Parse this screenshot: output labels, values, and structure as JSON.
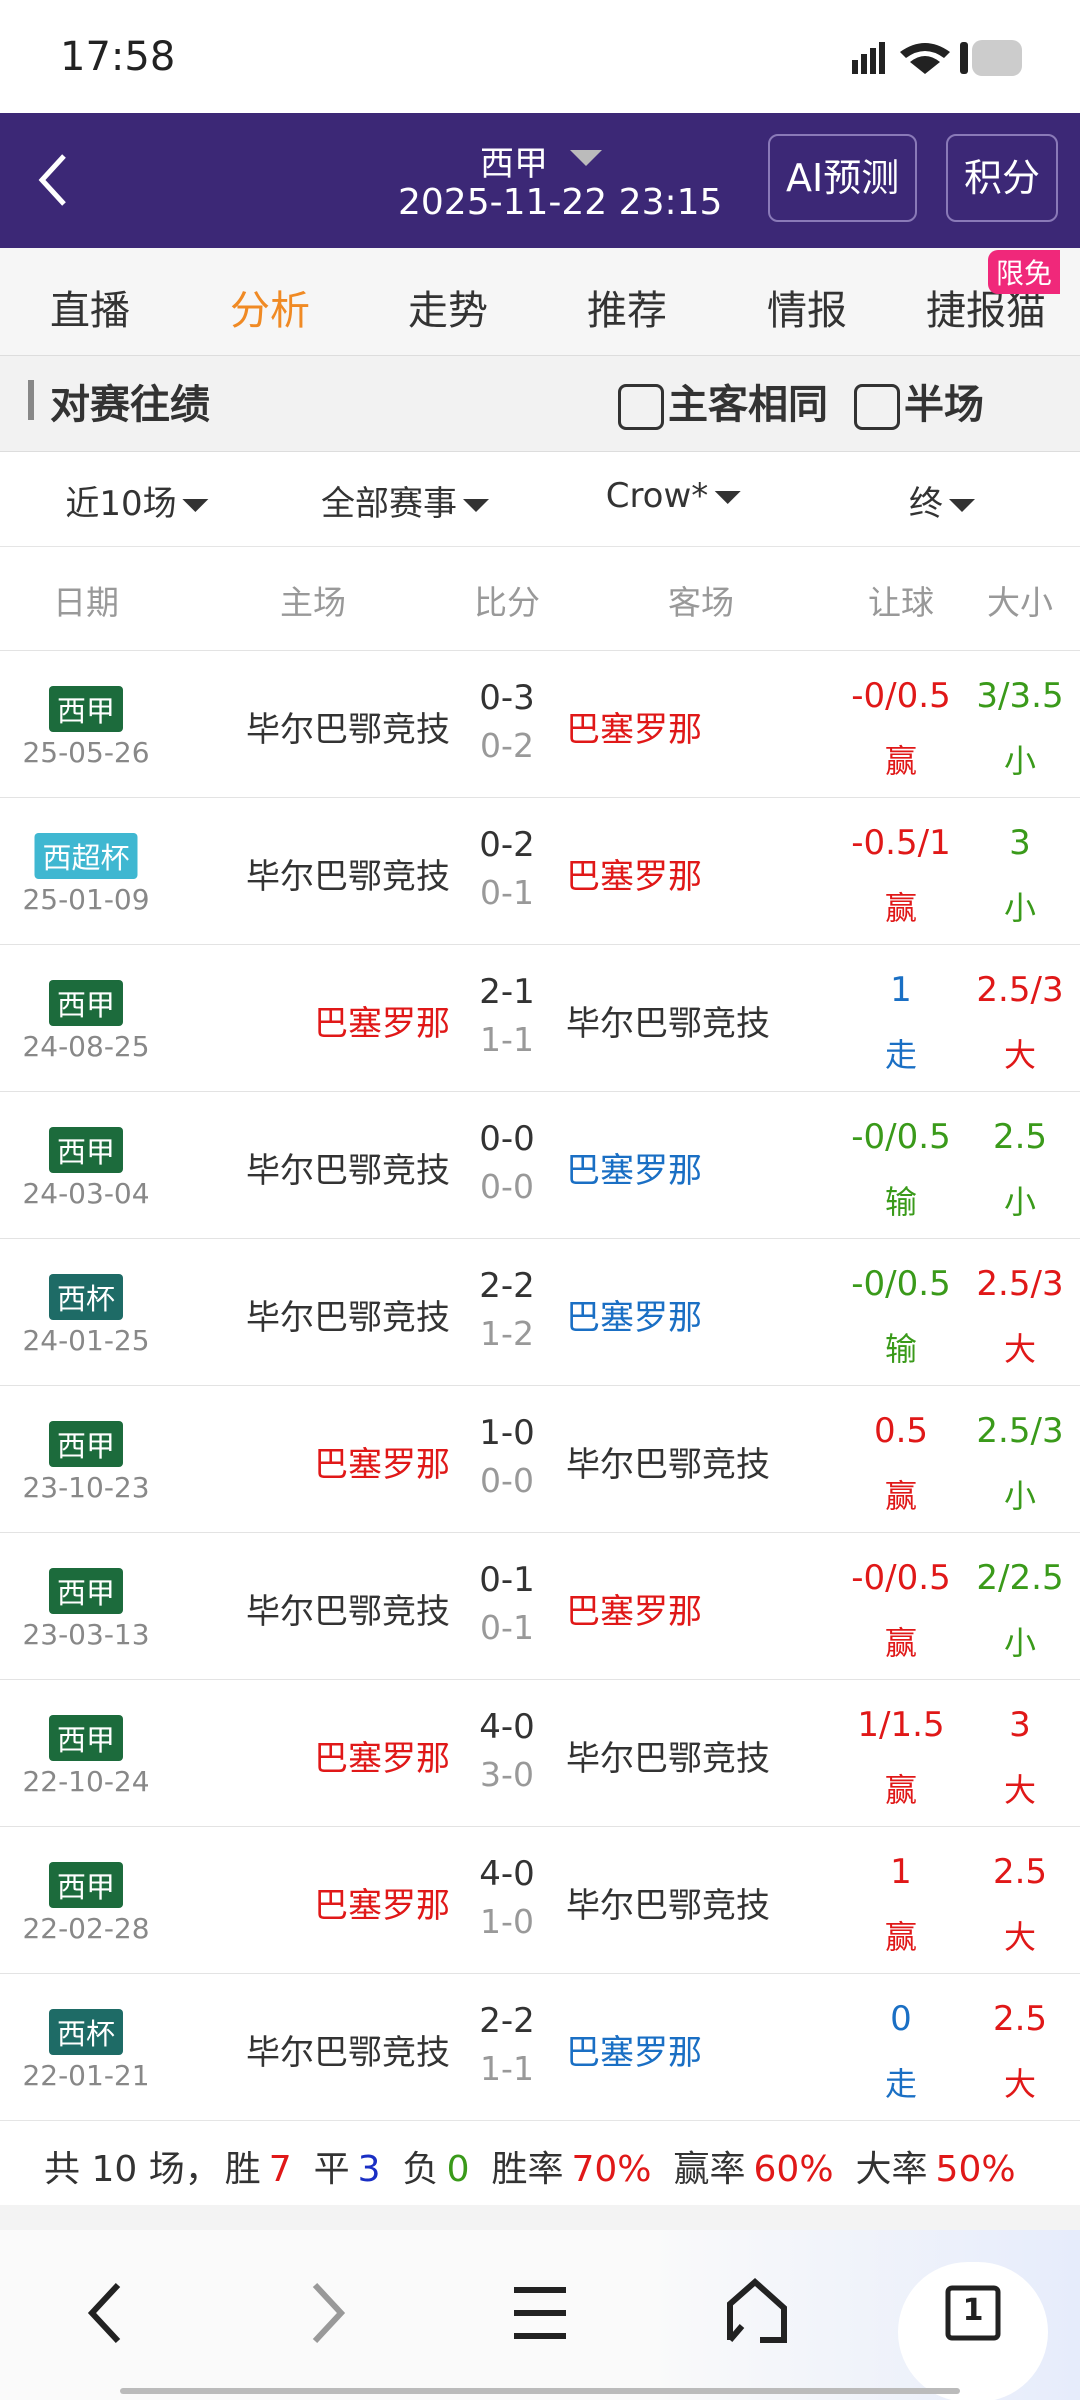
{
  "status": {
    "time": "17:58"
  },
  "header": {
    "league": "西甲",
    "datetime": "2025-11-22 23:15",
    "buttons": [
      "AI预测",
      "积分"
    ]
  },
  "tabs": {
    "items": [
      "直播",
      "分析",
      "走势",
      "推荐",
      "情报",
      "捷报猫"
    ],
    "active": 1,
    "badge": "限免"
  },
  "section": {
    "title": "对赛往绩",
    "checkboxes": [
      "主客相同",
      "半场"
    ]
  },
  "filters": [
    "近10场",
    "全部赛事",
    "Crow*",
    "终"
  ],
  "table": {
    "columns": [
      "日期",
      "主场",
      "比分",
      "客场",
      "让球",
      "大小"
    ],
    "rows": [
      {
        "league": "西甲",
        "league_color": "#1c6b3c",
        "date": "25-05-26",
        "home": "毕尔巴鄂竞技",
        "home_color": "#333333",
        "score": "0-3",
        "half": "0-2",
        "away": "巴塞罗那",
        "away_color": "#e01818",
        "handicap": "-0/0.5",
        "handicap_result": "赢",
        "handicap_color": "#e01818",
        "total": "3/3.5",
        "total_result": "小",
        "total_color": "#3a9a1a"
      },
      {
        "league": "西超杯",
        "league_color": "#3fb7d1",
        "date": "25-01-09",
        "home": "毕尔巴鄂竞技",
        "home_color": "#333333",
        "score": "0-2",
        "half": "0-1",
        "away": "巴塞罗那",
        "away_color": "#e01818",
        "handicap": "-0.5/1",
        "handicap_result": "赢",
        "handicap_color": "#e01818",
        "total": "3",
        "total_result": "小",
        "total_color": "#3a9a1a"
      },
      {
        "league": "西甲",
        "league_color": "#1c6b3c",
        "date": "24-08-25",
        "home": "巴塞罗那",
        "home_color": "#e01818",
        "score": "2-1",
        "half": "1-1",
        "away": "毕尔巴鄂竞技",
        "away_color": "#333333",
        "handicap": "1",
        "handicap_result": "走",
        "handicap_color": "#1a6fc4",
        "total": "2.5/3",
        "total_result": "大",
        "total_color": "#e01818"
      },
      {
        "league": "西甲",
        "league_color": "#1c6b3c",
        "date": "24-03-04",
        "home": "毕尔巴鄂竞技",
        "home_color": "#333333",
        "score": "0-0",
        "half": "0-0",
        "away": "巴塞罗那",
        "away_color": "#1a6fc4",
        "handicap": "-0/0.5",
        "handicap_result": "输",
        "handicap_color": "#3a9a1a",
        "total": "2.5",
        "total_result": "小",
        "total_color": "#3a9a1a"
      },
      {
        "league": "西杯",
        "league_color": "#1e6b66",
        "date": "24-01-25",
        "home": "毕尔巴鄂竞技",
        "home_color": "#333333",
        "score": "2-2",
        "half": "1-2",
        "away": "巴塞罗那",
        "away_color": "#1a6fc4",
        "handicap": "-0/0.5",
        "handicap_result": "输",
        "handicap_color": "#3a9a1a",
        "total": "2.5/3",
        "total_result": "大",
        "total_color": "#e01818"
      },
      {
        "league": "西甲",
        "league_color": "#1c6b3c",
        "date": "23-10-23",
        "home": "巴塞罗那",
        "home_color": "#e01818",
        "score": "1-0",
        "half": "0-0",
        "away": "毕尔巴鄂竞技",
        "away_color": "#333333",
        "handicap": "0.5",
        "handicap_result": "赢",
        "handicap_color": "#e01818",
        "total": "2.5/3",
        "total_result": "小",
        "total_color": "#3a9a1a"
      },
      {
        "league": "西甲",
        "league_color": "#1c6b3c",
        "date": "23-03-13",
        "home": "毕尔巴鄂竞技",
        "home_color": "#333333",
        "score": "0-1",
        "half": "0-1",
        "away": "巴塞罗那",
        "away_color": "#e01818",
        "handicap": "-0/0.5",
        "handicap_result": "赢",
        "handicap_color": "#e01818",
        "total": "2/2.5",
        "total_result": "小",
        "total_color": "#3a9a1a"
      },
      {
        "league": "西甲",
        "league_color": "#1c6b3c",
        "date": "22-10-24",
        "home": "巴塞罗那",
        "home_color": "#e01818",
        "score": "4-0",
        "half": "3-0",
        "away": "毕尔巴鄂竞技",
        "away_color": "#333333",
        "handicap": "1/1.5",
        "handicap_result": "赢",
        "handicap_color": "#e01818",
        "total": "3",
        "total_result": "大",
        "total_color": "#e01818"
      },
      {
        "league": "西甲",
        "league_color": "#1c6b3c",
        "date": "22-02-28",
        "home": "巴塞罗那",
        "home_color": "#e01818",
        "score": "4-0",
        "half": "1-0",
        "away": "毕尔巴鄂竞技",
        "away_color": "#333333",
        "handicap": "1",
        "handicap_result": "赢",
        "handicap_color": "#e01818",
        "total": "2.5",
        "total_result": "大",
        "total_color": "#e01818"
      },
      {
        "league": "西杯",
        "league_color": "#1e6b66",
        "date": "22-01-21",
        "home": "毕尔巴鄂竞技",
        "home_color": "#333333",
        "score": "2-2",
        "half": "1-1",
        "away": "巴塞罗那",
        "away_color": "#1a6fc4",
        "handicap": "0",
        "handicap_result": "走",
        "handicap_color": "#1a6fc4",
        "total": "2.5",
        "total_result": "大",
        "total_color": "#e01818"
      }
    ]
  },
  "summary": {
    "total": "共 10 场，",
    "items": [
      {
        "label": "胜",
        "value": "7",
        "color": "#e01818"
      },
      {
        "label": "平",
        "value": "3",
        "color": "#1a2fc4"
      },
      {
        "label": "负",
        "value": "0",
        "color": "#3a9a1a"
      },
      {
        "label": "胜率",
        "value": "70%",
        "color": "#e01818"
      },
      {
        "label": "赢率",
        "value": "60%",
        "color": "#e01818"
      },
      {
        "label": "大率",
        "value": "50%",
        "color": "#e01818"
      }
    ]
  },
  "nav": {
    "tab_count": "1"
  }
}
